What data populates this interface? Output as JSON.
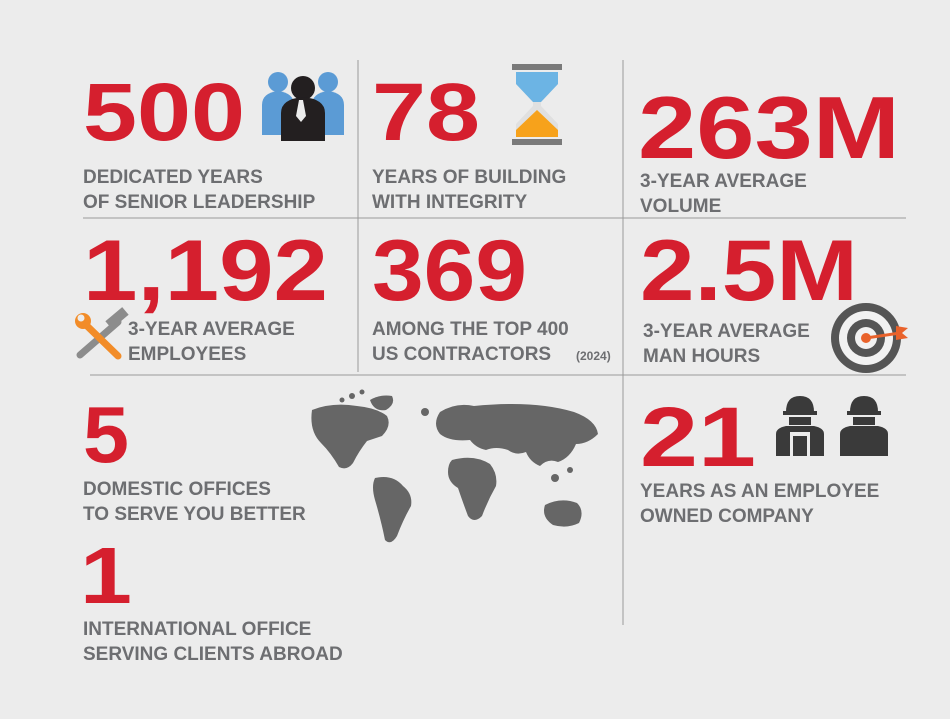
{
  "stats": [
    {
      "number": "500",
      "caption": [
        "DEDICATED YEARS",
        "OF SENIOR LEADERSHIP"
      ]
    },
    {
      "number": "78",
      "caption": [
        "YEARS OF BUILDING",
        "WITH INTEGRITY"
      ]
    },
    {
      "number": "263M",
      "caption": [
        "3-YEAR AVERAGE",
        "VOLUME"
      ]
    },
    {
      "number": "1,192",
      "caption": [
        "3-YEAR AVERAGE",
        "EMPLOYEES"
      ]
    },
    {
      "number": "369",
      "caption": [
        "AMONG THE TOP 400",
        "US CONTRACTORS"
      ],
      "note": "(2024)"
    },
    {
      "number": "2.5M",
      "caption": [
        "3-YEAR AVERAGE",
        "MAN HOURS"
      ]
    },
    {
      "number": "5",
      "caption": [
        "DOMESTIC OFFICES",
        "TO SERVE YOU BETTER"
      ]
    },
    {
      "number": "1",
      "caption": [
        "INTERNATIONAL OFFICE",
        "SERVING CLIENTS ABROAD"
      ]
    },
    {
      "number": "21",
      "caption": [
        "YEARS AS AN EMPLOYEE",
        "OWNED COMPANY"
      ]
    }
  ]
}
